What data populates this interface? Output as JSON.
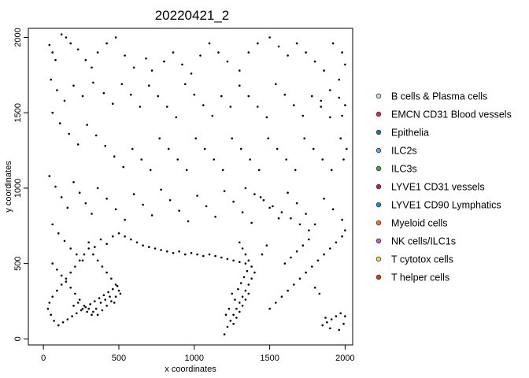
{
  "chart_data": {
    "type": "scatter",
    "title": "20220421_2",
    "xlabel": "x coordinates",
    "ylabel": "y coordinates",
    "xlim": [
      -100,
      2050
    ],
    "ylim": [
      -40,
      2060
    ],
    "x_ticks": [
      0,
      500,
      1000,
      1500,
      2000
    ],
    "y_ticks": [
      0,
      500,
      1000,
      1500,
      2000
    ],
    "grid": false,
    "legend_position": "right",
    "point_color": "#000000",
    "series": [
      {
        "name": "B cells & Plasma cells",
        "color": "#bfe3e3"
      },
      {
        "name": "EMCN CD31 Blood vessels",
        "color": "#e0284a"
      },
      {
        "name": "Epithelia",
        "color": "#1f7a8a"
      },
      {
        "name": "ILC2s",
        "color": "#5aa7e0"
      },
      {
        "name": "ILC3s",
        "color": "#3da84a"
      },
      {
        "name": "LYVE1 CD31 vessels",
        "color": "#c2185b"
      },
      {
        "name": "LYVE1 CD90 Lymphatics",
        "color": "#1f8fc8"
      },
      {
        "name": "Myeloid cells",
        "color": "#f07820"
      },
      {
        "name": "NK cells/ILC1s",
        "color": "#c060c8"
      },
      {
        "name": "T cytotox cells",
        "color": "#f0e040"
      },
      {
        "name": "T helper cells",
        "color": "#d04010"
      }
    ],
    "points": [
      [
        40,
        1950
      ],
      [
        60,
        1900
      ],
      [
        80,
        1850
      ],
      [
        120,
        2020
      ],
      [
        150,
        2000
      ],
      [
        180,
        1960
      ],
      [
        230,
        1920
      ],
      [
        280,
        1850
      ],
      [
        320,
        1800
      ],
      [
        360,
        1900
      ],
      [
        420,
        1960
      ],
      [
        480,
        2000
      ],
      [
        540,
        1880
      ],
      [
        600,
        1800
      ],
      [
        680,
        1860
      ],
      [
        720,
        1780
      ],
      [
        800,
        1840
      ],
      [
        860,
        1900
      ],
      [
        920,
        1820
      ],
      [
        980,
        1760
      ],
      [
        1040,
        1880
      ],
      [
        1100,
        1960
      ],
      [
        1160,
        1900
      ],
      [
        1220,
        1840
      ],
      [
        1300,
        1780
      ],
      [
        1360,
        1900
      ],
      [
        1420,
        1960
      ],
      [
        1500,
        2000
      ],
      [
        1560,
        1940
      ],
      [
        1620,
        1880
      ],
      [
        1680,
        1960
      ],
      [
        1740,
        1900
      ],
      [
        1800,
        1840
      ],
      [
        1860,
        1780
      ],
      [
        1920,
        1960
      ],
      [
        1980,
        1900
      ],
      [
        2000,
        1820
      ],
      [
        1960,
        1720
      ],
      [
        1900,
        1650
      ],
      [
        1840,
        1580
      ],
      [
        50,
        1720
      ],
      [
        90,
        1650
      ],
      [
        140,
        1580
      ],
      [
        200,
        1680
      ],
      [
        260,
        1610
      ],
      [
        330,
        1700
      ],
      [
        400,
        1630
      ],
      [
        460,
        1560
      ],
      [
        520,
        1690
      ],
      [
        580,
        1620
      ],
      [
        640,
        1540
      ],
      [
        700,
        1680
      ],
      [
        760,
        1610
      ],
      [
        820,
        1540
      ],
      [
        880,
        1470
      ],
      [
        940,
        1690
      ],
      [
        1000,
        1620
      ],
      [
        1060,
        1550
      ],
      [
        1120,
        1480
      ],
      [
        1180,
        1610
      ],
      [
        1240,
        1540
      ],
      [
        1300,
        1680
      ],
      [
        1360,
        1610
      ],
      [
        1420,
        1540
      ],
      [
        1480,
        1470
      ],
      [
        1540,
        1690
      ],
      [
        1600,
        1620
      ],
      [
        1660,
        1550
      ],
      [
        1720,
        1480
      ],
      [
        1780,
        1610
      ],
      [
        1840,
        1540
      ],
      [
        1900,
        1470
      ],
      [
        1960,
        1600
      ],
      [
        2000,
        1550
      ],
      [
        1980,
        1480
      ],
      [
        60,
        1500
      ],
      [
        110,
        1430
      ],
      [
        170,
        1360
      ],
      [
        230,
        1290
      ],
      [
        290,
        1420
      ],
      [
        350,
        1350
      ],
      [
        410,
        1280
      ],
      [
        470,
        1210
      ],
      [
        530,
        1140
      ],
      [
        590,
        1260
      ],
      [
        650,
        1190
      ],
      [
        710,
        1120
      ],
      [
        770,
        1330
      ],
      [
        830,
        1260
      ],
      [
        890,
        1190
      ],
      [
        950,
        1120
      ],
      [
        1010,
        1330
      ],
      [
        1070,
        1260
      ],
      [
        1130,
        1190
      ],
      [
        1190,
        1120
      ],
      [
        1250,
        1330
      ],
      [
        1310,
        1260
      ],
      [
        1370,
        1190
      ],
      [
        1430,
        1120
      ],
      [
        1490,
        1330
      ],
      [
        1550,
        1260
      ],
      [
        1610,
        1190
      ],
      [
        1670,
        1120
      ],
      [
        1730,
        1330
      ],
      [
        1790,
        1260
      ],
      [
        1850,
        1190
      ],
      [
        1910,
        1120
      ],
      [
        1970,
        1330
      ],
      [
        2010,
        1260
      ],
      [
        1990,
        1190
      ],
      [
        40,
        1080
      ],
      [
        80,
        1010
      ],
      [
        120,
        940
      ],
      [
        160,
        870
      ],
      [
        200,
        1040
      ],
      [
        240,
        970
      ],
      [
        280,
        900
      ],
      [
        320,
        830
      ],
      [
        360,
        1000
      ],
      [
        420,
        930
      ],
      [
        480,
        860
      ],
      [
        540,
        790
      ],
      [
        600,
        960
      ],
      [
        660,
        890
      ],
      [
        720,
        820
      ],
      [
        780,
        990
      ],
      [
        840,
        920
      ],
      [
        900,
        850
      ],
      [
        960,
        780
      ],
      [
        1020,
        950
      ],
      [
        1080,
        880
      ],
      [
        1140,
        810
      ],
      [
        1200,
        980
      ],
      [
        1260,
        910
      ],
      [
        1320,
        840
      ],
      [
        1380,
        770
      ],
      [
        1440,
        940
      ],
      [
        1500,
        870
      ],
      [
        1560,
        800
      ],
      [
        1620,
        970
      ],
      [
        1680,
        900
      ],
      [
        1740,
        830
      ],
      [
        1800,
        760
      ],
      [
        1860,
        930
      ],
      [
        1920,
        860
      ],
      [
        1980,
        790
      ],
      [
        2000,
        720
      ],
      [
        60,
        760
      ],
      [
        100,
        700
      ],
      [
        140,
        650
      ],
      [
        180,
        600
      ],
      [
        220,
        560
      ],
      [
        260,
        520
      ],
      [
        300,
        640
      ],
      [
        340,
        610
      ],
      [
        380,
        660
      ],
      [
        420,
        630
      ],
      [
        460,
        680
      ],
      [
        500,
        700
      ],
      [
        540,
        680
      ],
      [
        580,
        660
      ],
      [
        620,
        640
      ],
      [
        660,
        620
      ],
      [
        700,
        610
      ],
      [
        740,
        600
      ],
      [
        780,
        590
      ],
      [
        820,
        580
      ],
      [
        860,
        570
      ],
      [
        900,
        580
      ],
      [
        940,
        560
      ],
      [
        980,
        570
      ],
      [
        1020,
        560
      ],
      [
        1060,
        550
      ],
      [
        1100,
        560
      ],
      [
        1140,
        550
      ],
      [
        1180,
        540
      ],
      [
        1220,
        530
      ],
      [
        1260,
        520
      ],
      [
        1300,
        510
      ],
      [
        1340,
        500
      ],
      [
        60,
        500
      ],
      [
        90,
        460
      ],
      [
        120,
        420
      ],
      [
        150,
        380
      ],
      [
        180,
        340
      ],
      [
        210,
        300
      ],
      [
        240,
        260
      ],
      [
        270,
        220
      ],
      [
        300,
        200
      ],
      [
        330,
        180
      ],
      [
        360,
        160
      ],
      [
        390,
        190
      ],
      [
        420,
        220
      ],
      [
        450,
        250
      ],
      [
        480,
        280
      ],
      [
        500,
        320
      ],
      [
        480,
        360
      ],
      [
        450,
        400
      ],
      [
        420,
        440
      ],
      [
        390,
        480
      ],
      [
        360,
        520
      ],
      [
        330,
        560
      ],
      [
        300,
        600
      ],
      [
        270,
        560
      ],
      [
        240,
        520
      ],
      [
        210,
        480
      ],
      [
        180,
        440
      ],
      [
        150,
        400
      ],
      [
        120,
        360
      ],
      [
        90,
        320
      ],
      [
        60,
        280
      ],
      [
        40,
        240
      ],
      [
        30,
        200
      ],
      [
        50,
        160
      ],
      [
        70,
        120
      ],
      [
        100,
        90
      ],
      [
        130,
        110
      ],
      [
        160,
        130
      ],
      [
        190,
        150
      ],
      [
        220,
        170
      ],
      [
        250,
        190
      ],
      [
        280,
        210
      ],
      [
        310,
        230
      ],
      [
        340,
        250
      ],
      [
        370,
        270
      ],
      [
        400,
        290
      ],
      [
        430,
        310
      ],
      [
        460,
        330
      ],
      [
        490,
        350
      ],
      [
        510,
        300
      ],
      [
        200,
        220
      ],
      [
        230,
        240
      ],
      [
        260,
        200
      ],
      [
        290,
        180
      ],
      [
        320,
        160
      ],
      [
        350,
        200
      ],
      [
        380,
        240
      ],
      [
        410,
        260
      ],
      [
        440,
        280
      ],
      [
        470,
        240
      ],
      [
        1200,
        30
      ],
      [
        1220,
        80
      ],
      [
        1240,
        120
      ],
      [
        1260,
        160
      ],
      [
        1280,
        200
      ],
      [
        1300,
        240
      ],
      [
        1320,
        280
      ],
      [
        1340,
        320
      ],
      [
        1360,
        360
      ],
      [
        1380,
        400
      ],
      [
        1400,
        440
      ],
      [
        1380,
        480
      ],
      [
        1360,
        520
      ],
      [
        1340,
        560
      ],
      [
        1320,
        600
      ],
      [
        1300,
        640
      ],
      [
        1250,
        300
      ],
      [
        1270,
        260
      ],
      [
        1290,
        330
      ],
      [
        1310,
        370
      ],
      [
        1330,
        410
      ],
      [
        1350,
        450
      ],
      [
        1230,
        200
      ],
      [
        1210,
        160
      ],
      [
        1260,
        100
      ],
      [
        1280,
        140
      ],
      [
        1300,
        180
      ],
      [
        1320,
        220
      ],
      [
        1340,
        260
      ],
      [
        1360,
        300
      ],
      [
        1500,
        200
      ],
      [
        1540,
        240
      ],
      [
        1580,
        280
      ],
      [
        1620,
        320
      ],
      [
        1660,
        360
      ],
      [
        1700,
        400
      ],
      [
        1740,
        440
      ],
      [
        1780,
        480
      ],
      [
        1820,
        520
      ],
      [
        1860,
        560
      ],
      [
        1900,
        600
      ],
      [
        1940,
        640
      ],
      [
        1980,
        680
      ],
      [
        1600,
        500
      ],
      [
        1640,
        540
      ],
      [
        1680,
        580
      ],
      [
        1720,
        620
      ],
      [
        1760,
        660
      ],
      [
        1450,
        560
      ],
      [
        1480,
        620
      ],
      [
        1850,
        90
      ],
      [
        1880,
        110
      ],
      [
        1910,
        130
      ],
      [
        1940,
        150
      ],
      [
        1970,
        170
      ],
      [
        2000,
        150
      ],
      [
        1990,
        100
      ],
      [
        1960,
        60
      ],
      [
        1900,
        70
      ],
      [
        1870,
        140
      ],
      [
        1800,
        340
      ],
      [
        1830,
        300
      ],
      [
        1760,
        720
      ],
      [
        1700,
        760
      ],
      [
        1640,
        800
      ],
      [
        1580,
        840
      ],
      [
        1520,
        880
      ],
      [
        1460,
        920
      ],
      [
        1400,
        960
      ],
      [
        1340,
        1000
      ]
    ]
  }
}
